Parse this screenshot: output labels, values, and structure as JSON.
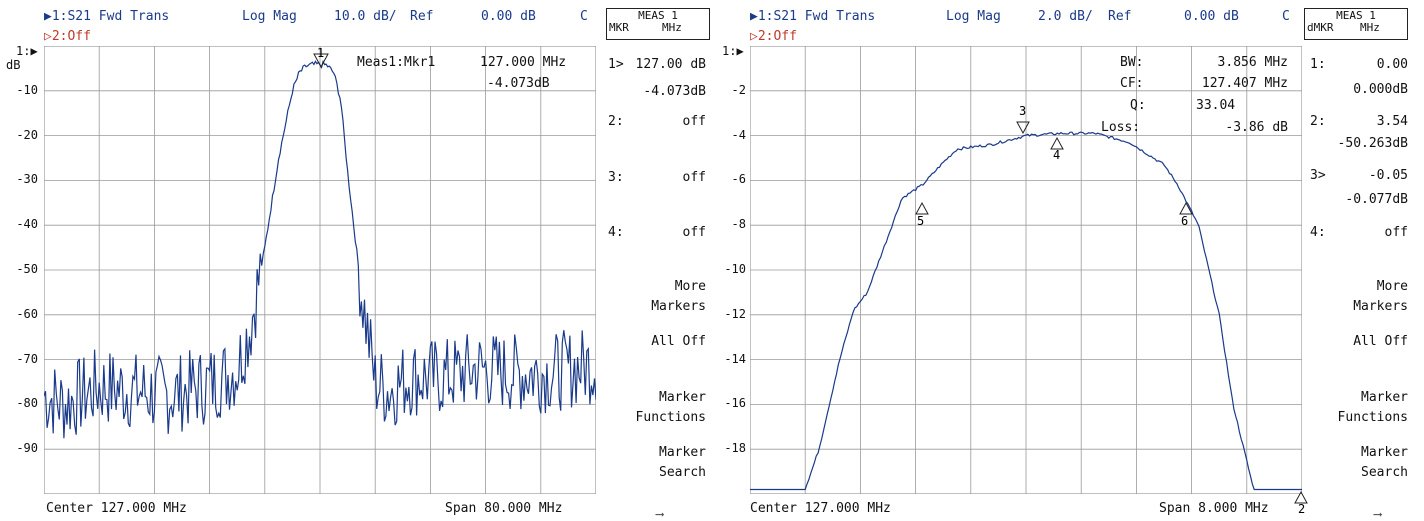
{
  "left": {
    "trace1": "▶1:S21 Fwd Trans",
    "format": "Log Mag",
    "scale": "10.0 dB/",
    "ref": "Ref",
    "ref_val": "0.00 dB",
    "c": "C",
    "trace2": "▷2:Off",
    "meas_title": "MEAS 1",
    "meas_sub": "MKR     MHz",
    "yaxis_marker": "1:▶",
    "yunit": "dB",
    "yticks": [
      "-10",
      "-20",
      "-30",
      "-40",
      "-50",
      "-60",
      "-70",
      "-80",
      "-90"
    ],
    "mkr_readout_label": "Meas1:Mkr1",
    "mkr_readout_freq": "127.000 MHz",
    "mkr_readout_val": "-4.073dB",
    "marker1_label": "1",
    "center": "Center 127.000 MHz",
    "span": "Span 80.000 MHz",
    "markers": [
      {
        "id": "1>",
        "val": "127.00 dB",
        "sub": "-4.073dB"
      },
      {
        "id": "2:",
        "val": "off",
        "sub": ""
      },
      {
        "id": "3:",
        "val": "off",
        "sub": ""
      },
      {
        "id": "4:",
        "val": "off",
        "sub": ""
      }
    ],
    "softkeys": [
      "More\nMarkers",
      "All Off",
      "Marker\nFunctions",
      "Marker\nSearch"
    ]
  },
  "right": {
    "trace1": "▶1:S21 Fwd Trans",
    "format": "Log Mag",
    "scale": "2.0 dB/",
    "ref": "Ref",
    "ref_val": "0.00 dB",
    "c": "C",
    "trace2": "▷2:Off",
    "meas_title": "MEAS 1",
    "meas_sub": "dMKR    MHz",
    "yaxis_marker": "1:▶",
    "yticks": [
      "-2",
      "-4",
      "-6",
      "-8",
      "-10",
      "-12",
      "-14",
      "-16",
      "-18"
    ],
    "bw_stats": [
      {
        "label": "BW:",
        "value": "3.856 MHz"
      },
      {
        "label": "CF:",
        "value": "127.407 MHz"
      },
      {
        "label": "Q:",
        "value": "33.04"
      },
      {
        "label": "Loss:",
        "value": "-3.86 dB"
      }
    ],
    "marker_labels": [
      "3",
      "4",
      "5",
      "6",
      "2"
    ],
    "center": "Center 127.000 MHz",
    "span": "Span 8.000 MHz",
    "markers": [
      {
        "id": "1:",
        "val": "0.00",
        "sub": "0.000dB"
      },
      {
        "id": "2:",
        "val": "3.54",
        "sub": "-50.263dB"
      },
      {
        "id": "3>",
        "val": "-0.05",
        "sub": "-0.077dB"
      },
      {
        "id": "4:",
        "val": "off",
        "sub": ""
      }
    ],
    "softkeys": [
      "More\nMarkers",
      "All Off",
      "Marker\nFunctions",
      "Marker\nSearch"
    ]
  },
  "colors": {
    "trace": "#1a3a8a",
    "grid": "#9a9a9a",
    "accent_red": "#c0392b"
  },
  "chart_data": [
    {
      "type": "line",
      "title": "S21 Fwd Trans",
      "xlabel": "",
      "ylabel": "dB",
      "xlim": [
        87,
        167
      ],
      "ylim": [
        -100,
        0
      ],
      "series": [
        {
          "name": "S21 Fwd Trans",
          "x": [
            87,
            90,
            95,
            100,
            105,
            110,
            113,
            115,
            117,
            119,
            121,
            123,
            124,
            125,
            126,
            127,
            128,
            129,
            130,
            131,
            133,
            135,
            137,
            140,
            145,
            150,
            155,
            160,
            167
          ],
          "values": [
            -78,
            -80,
            -76,
            -77,
            -78,
            -76,
            -74,
            -72,
            -62,
            -45,
            -25,
            -10,
            -6,
            -4.5,
            -4.2,
            -4.1,
            -4.3,
            -6,
            -12,
            -28,
            -55,
            -75,
            -77,
            -74,
            -74,
            -72,
            -73,
            -73,
            -71
          ]
        }
      ]
    },
    {
      "type": "line",
      "title": "S21 Fwd Trans",
      "xlabel": "",
      "ylabel": "dB",
      "xlim": [
        123,
        131
      ],
      "ylim": [
        -20,
        0
      ],
      "series": [
        {
          "name": "S21 Fwd Trans",
          "x": [
            123,
            123.8,
            124,
            124.3,
            124.5,
            124.7,
            125,
            125.2,
            125.5,
            125.8,
            126,
            126.5,
            127,
            127.5,
            128,
            128.5,
            129,
            129.2,
            129.5,
            129.8,
            130,
            130.3,
            130.5,
            131
          ],
          "values": [
            -19.8,
            -19.8,
            -18,
            -14,
            -11.8,
            -11,
            -8.5,
            -6.8,
            -6.2,
            -5.2,
            -4.6,
            -4.4,
            -4.0,
            -3.9,
            -3.9,
            -4.3,
            -5.3,
            -6.2,
            -8.0,
            -12,
            -16,
            -19.8,
            -19.8,
            -19.8
          ]
        }
      ]
    }
  ]
}
